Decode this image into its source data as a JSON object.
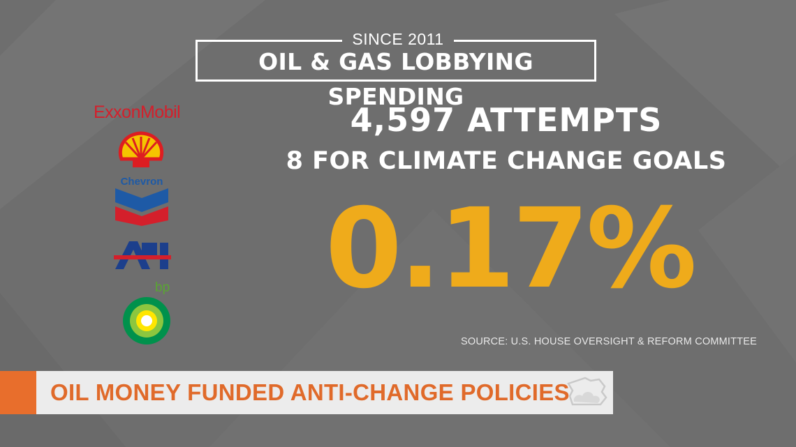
{
  "header": {
    "since": "SINCE 2011",
    "title": "OIL & GAS LOBBYING SPENDING"
  },
  "stats": {
    "attempts": "4,597 ATTEMPTS",
    "climate": "8 FOR CLIMATE CHANGE GOALS",
    "percent": "0.17%"
  },
  "source": "SOURCE: U.S. HOUSE OVERSIGHT & REFORM COMMITTEE",
  "logos": {
    "exxon": "ExxonMobil",
    "chevron": "Chevron",
    "api": "API",
    "bp": "bp",
    "shell_icon": "shell-logo",
    "bp_icon": "bp-helios-logo"
  },
  "lower_third": {
    "headline": "OIL MONEY FUNDED ANTI-CHANGE POLICIES",
    "icon": "state-weather-icon"
  },
  "colors": {
    "background": "#6e6e6e",
    "accent_yellow": "#efab1b",
    "lower_third_orange": "#e86e2c",
    "exxon_red": "#d41f2b",
    "chevron_blue": "#1e5aa6",
    "bp_green": "#59a532"
  }
}
